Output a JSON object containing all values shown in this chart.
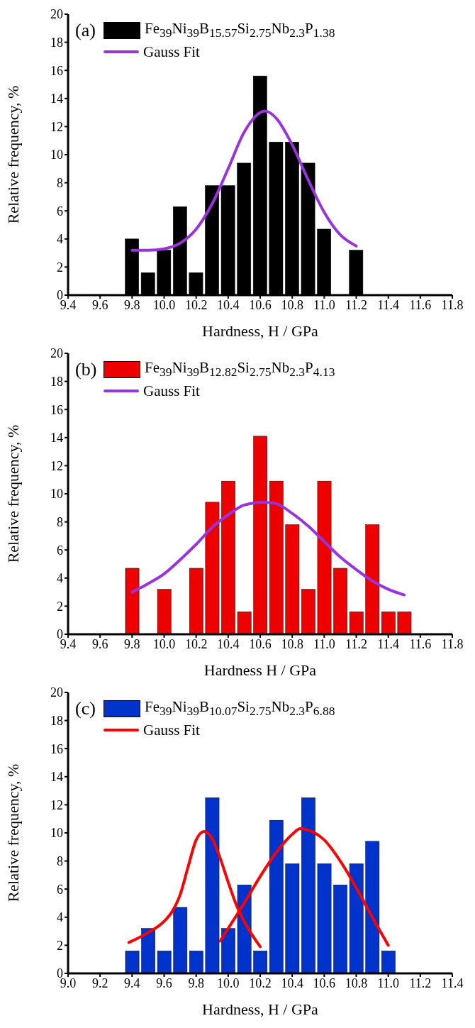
{
  "chart_data": [
    {
      "type": "bar",
      "annotations": [
        "(a)"
      ],
      "xlabel": "Hardness, H / GPa",
      "ylabel": "Relative frequency, %",
      "legend": "top left",
      "grid": false,
      "xlim": [
        9.4,
        11.8
      ],
      "xticks": [
        9.4,
        9.6,
        9.8,
        {
          "value": 10.0,
          "label": "10.0"
        },
        10.2,
        10.4,
        10.6,
        10.8,
        {
          "value": 11.0,
          "label": "11.0"
        },
        11.2,
        11.4,
        11.6,
        11.8
      ],
      "ylim": [
        0,
        20
      ],
      "yticks": [
        0,
        2,
        4,
        6,
        8,
        10,
        12,
        14,
        16,
        18,
        20
      ],
      "series": [
        {
          "name": "Fe$_{39}$Ni$_{39}$B$_{15.57}$Si$_{2.75}$Nb$_{2.3}$P$_{1.38}$",
          "color": "#000000",
          "x": [
            9.8,
            9.9,
            10.0,
            10.1,
            10.2,
            10.3,
            10.4,
            10.5,
            10.6,
            10.7,
            10.8,
            10.9,
            11.0,
            11.2
          ],
          "values": [
            4.0,
            1.6,
            3.2,
            6.3,
            1.6,
            7.8,
            7.8,
            9.4,
            15.6,
            10.9,
            10.9,
            9.4,
            4.7,
            3.2
          ]
        },
        {
          "type": "line",
          "name": "Gauss Fit",
          "color": "#9933dd",
          "x": [
            9.8,
            9.9,
            10.0,
            10.1,
            10.2,
            10.3,
            10.4,
            10.5,
            10.63,
            10.7,
            10.8,
            10.9,
            11.0,
            11.1,
            11.2
          ],
          "values": [
            3.2,
            3.2,
            3.3,
            3.7,
            4.7,
            6.5,
            9.0,
            11.6,
            13.1,
            12.6,
            10.7,
            8.2,
            5.9,
            4.3,
            3.5
          ]
        }
      ]
    },
    {
      "type": "bar",
      "annotations": [
        "(b)"
      ],
      "xlabel": "Hardness H / GPa",
      "ylabel": "Relative frequency, %",
      "legend": "top left",
      "grid": false,
      "xlim": [
        9.4,
        11.8
      ],
      "xticks": [
        9.4,
        9.6,
        9.8,
        {
          "value": 10.0,
          "label": "10.0"
        },
        10.2,
        10.4,
        10.6,
        10.8,
        {
          "value": 11.0,
          "label": "11.0"
        },
        11.2,
        11.4,
        11.6,
        11.8
      ],
      "ylim": [
        0,
        20
      ],
      "yticks": [
        0,
        2,
        4,
        6,
        8,
        10,
        12,
        14,
        16,
        18,
        20
      ],
      "series": [
        {
          "name": "Fe$_{39}$Ni$_{39}$B$_{12.82}$Si$_{2.75}$Nb$_{2.3}$P$_{4.13}$",
          "color": "#ee0000",
          "x": [
            9.8,
            10.0,
            10.2,
            10.3,
            10.4,
            10.5,
            10.6,
            10.7,
            10.8,
            10.9,
            11.0,
            11.1,
            11.2,
            11.3,
            11.4,
            11.5
          ],
          "values": [
            4.7,
            3.2,
            4.7,
            9.4,
            10.9,
            1.6,
            14.1,
            10.9,
            7.8,
            3.2,
            10.9,
            4.7,
            1.6,
            7.8,
            1.6,
            1.6
          ]
        },
        {
          "type": "line",
          "name": "Gauss Fit",
          "color": "#9933dd",
          "x": [
            9.8,
            9.9,
            10.0,
            10.1,
            10.2,
            10.3,
            10.4,
            10.5,
            10.62,
            10.7,
            10.8,
            10.9,
            11.0,
            11.1,
            11.2,
            11.3,
            11.4,
            11.5
          ],
          "values": [
            3.0,
            3.6,
            4.3,
            5.3,
            6.4,
            7.6,
            8.5,
            9.2,
            9.4,
            9.3,
            8.6,
            7.7,
            6.6,
            5.5,
            4.6,
            3.8,
            3.2,
            2.8
          ]
        }
      ]
    },
    {
      "type": "bar",
      "annotations": [
        "(c)"
      ],
      "xlabel": "Hardness, H / GPa",
      "ylabel": "Relative frequency, %",
      "legend": "top left",
      "grid": false,
      "xlim": [
        9.0,
        11.4
      ],
      "xticks": [
        {
          "value": 9.0,
          "label": "9.0"
        },
        9.2,
        9.4,
        9.6,
        9.8,
        {
          "value": 10.0,
          "label": "10.0"
        },
        10.2,
        10.4,
        10.6,
        10.8,
        {
          "value": 11.0,
          "label": "11.0"
        },
        11.2,
        11.4
      ],
      "ylim": [
        0,
        20
      ],
      "yticks": [
        0,
        2,
        4,
        6,
        8,
        10,
        12,
        14,
        16,
        18,
        20
      ],
      "series": [
        {
          "name": "Fe$_{39}$Ni$_{39}$B$_{10.07}$Si$_{2.75}$Nb$_{2.3}$P$_{6.88}$",
          "color": "#0033cc",
          "x": [
            9.4,
            9.5,
            9.6,
            9.7,
            9.8,
            9.9,
            10.0,
            10.1,
            10.2,
            10.3,
            10.4,
            10.5,
            10.6,
            10.7,
            10.8,
            10.9,
            11.0
          ],
          "values": [
            1.6,
            3.2,
            1.6,
            4.7,
            1.6,
            12.5,
            3.2,
            6.3,
            1.6,
            10.9,
            7.8,
            12.5,
            7.8,
            6.3,
            7.8,
            9.4,
            1.6
          ]
        },
        {
          "type": "line",
          "name": "Gauss Fit",
          "color": "#ff0000",
          "x": [
            9.38,
            9.5,
            9.6,
            9.65,
            9.7,
            9.75,
            9.8,
            9.85,
            9.9,
            9.95,
            10.0,
            10.05,
            10.1,
            10.2
          ],
          "values": [
            2.2,
            2.9,
            3.7,
            4.4,
            5.6,
            7.6,
            9.5,
            10.1,
            9.6,
            8.2,
            6.5,
            4.9,
            3.7,
            1.9
          ]
        },
        {
          "type": "line",
          "color": "#ff0000",
          "x": [
            9.95,
            10.0,
            10.1,
            10.2,
            10.3,
            10.4,
            10.45,
            10.5,
            10.6,
            10.7,
            10.8,
            10.9,
            11.0
          ],
          "values": [
            2.3,
            3.2,
            5.0,
            6.9,
            8.6,
            9.9,
            10.3,
            10.2,
            9.5,
            8.0,
            6.1,
            4.0,
            2.0
          ]
        }
      ]
    }
  ]
}
